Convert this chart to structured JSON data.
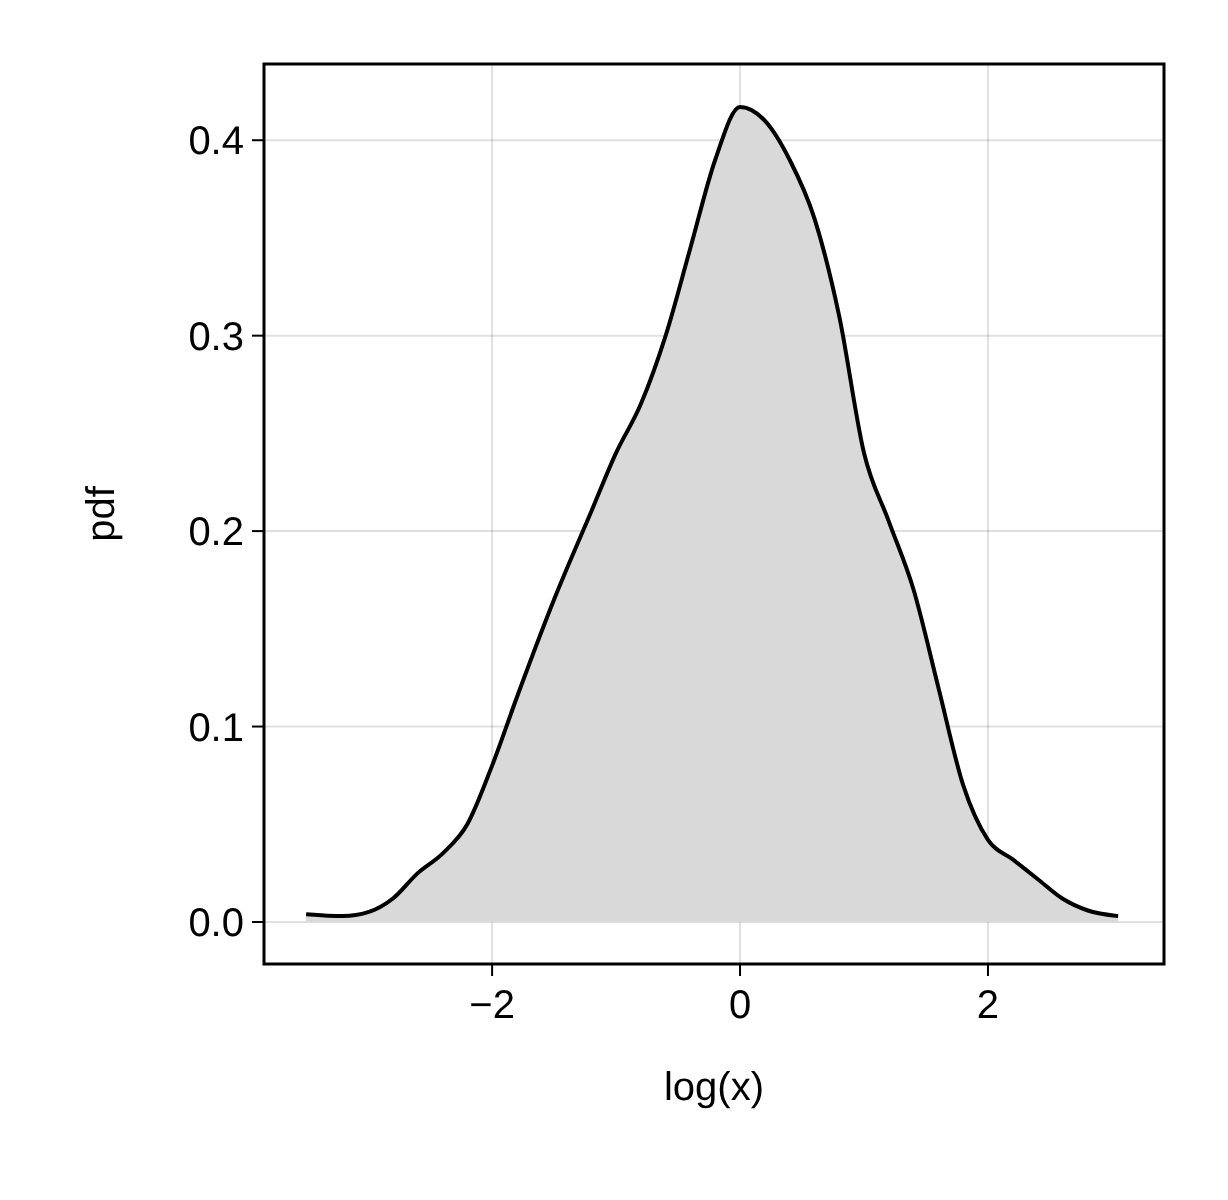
{
  "chart_data": {
    "type": "area",
    "xlabel": "log(x)",
    "ylabel": "pdf",
    "xlim": [
      -3.84,
      3.42
    ],
    "ylim": [
      -0.0215,
      0.439
    ],
    "xticks": [
      {
        "value": -2,
        "label": "−2"
      },
      0,
      2
    ],
    "yticks": [
      {
        "value": 0,
        "label": "0.0"
      },
      0.1,
      0.2,
      0.3,
      0.4
    ],
    "grid": true,
    "series": [
      {
        "color": "#d9d9d9",
        "x": [
          -3.5,
          -3.2,
          -3.0,
          -2.8,
          -2.6,
          -2.4,
          -2.2,
          -2.0,
          -1.8,
          -1.5,
          -1.2,
          -1.0,
          -0.8,
          -0.6,
          -0.4,
          -0.2,
          0,
          0.2,
          0.4,
          0.6,
          0.8,
          1.0,
          1.2,
          1.4,
          1.6,
          1.8,
          2.0,
          2.2,
          2.4,
          2.6,
          2.8,
          3.05
        ],
        "values": [
          0.004,
          0.003,
          0.005,
          0.012,
          0.025,
          0.035,
          0.05,
          0.08,
          0.115,
          0.165,
          0.21,
          0.24,
          0.265,
          0.3,
          0.345,
          0.39,
          0.417,
          0.41,
          0.39,
          0.36,
          0.31,
          0.24,
          0.205,
          0.17,
          0.12,
          0.07,
          0.042,
          0.032,
          0.022,
          0.012,
          0.006,
          0.003
        ]
      }
    ]
  }
}
